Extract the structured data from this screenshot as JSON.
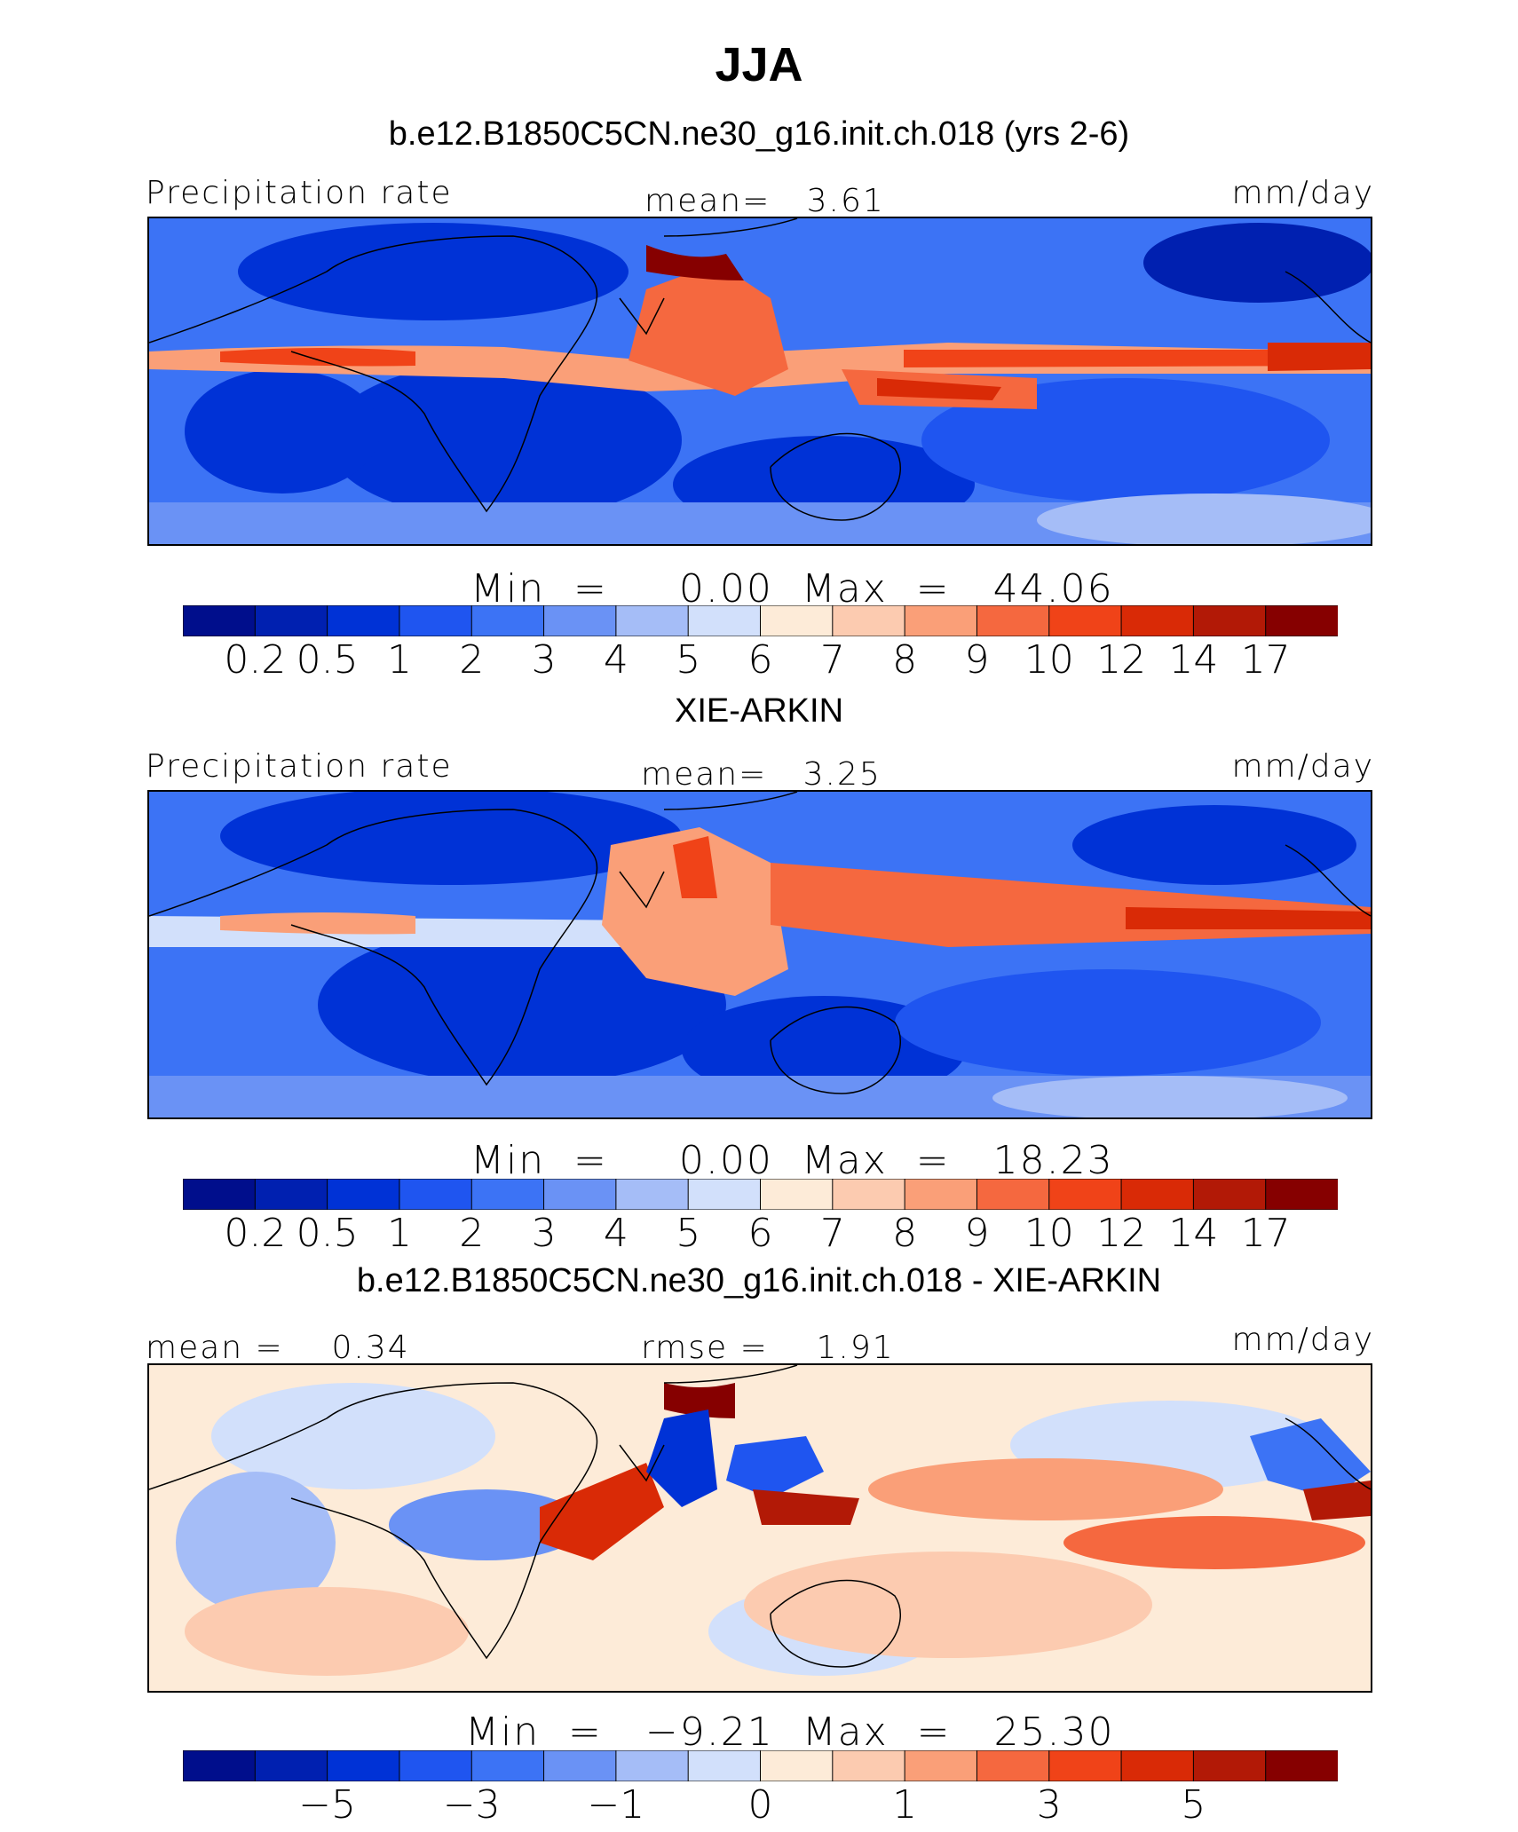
{
  "header": {
    "season": "JJA"
  },
  "colors": {
    "abs_scale": [
      "#000e8c",
      "#0020b0",
      "#0032d6",
      "#1f55f0",
      "#3c73f5",
      "#6a92f5",
      "#a5bdf7",
      "#d2e0fb",
      "#fdebd8",
      "#fccbb0",
      "#fa9f78",
      "#f5683f",
      "#f04318",
      "#d92a06",
      "#b21906",
      "#860000"
    ],
    "diff_scale": [
      "#000e8c",
      "#0020b0",
      "#0032d6",
      "#1f55f0",
      "#3c73f5",
      "#6a92f5",
      "#a5bdf7",
      "#d2e0fb",
      "#fdebd8",
      "#fccbb0",
      "#fa9f78",
      "#f5683f",
      "#f04318",
      "#d92a06",
      "#b21906",
      "#860000"
    ]
  },
  "panels": [
    {
      "title": "b.e12.B1850C5CN.ne30_g16.init.ch.018 (yrs 2-6)",
      "left_label": "Precipitation rate",
      "center_label": "mean=",
      "center_value": "3.61",
      "right_label": "mm/day",
      "min_label": "Min",
      "min_value": "0.00",
      "max_label": "Max",
      "max_value": "44.06",
      "colorbar_labels": [
        "0.2",
        "0.5",
        "1",
        "2",
        "3",
        "4",
        "5",
        "6",
        "7",
        "8",
        "9",
        "10",
        "12",
        "14",
        "17"
      ]
    },
    {
      "title": "XIE-ARKIN",
      "left_label": "Precipitation rate",
      "center_label": "mean=",
      "center_value": "3.25",
      "right_label": "mm/day",
      "min_label": "Min",
      "min_value": "0.00",
      "max_label": "Max",
      "max_value": "18.23",
      "colorbar_labels": [
        "0.2",
        "0.5",
        "1",
        "2",
        "3",
        "4",
        "5",
        "6",
        "7",
        "8",
        "9",
        "10",
        "12",
        "14",
        "17"
      ]
    },
    {
      "title": "b.e12.B1850C5CN.ne30_g16.init.ch.018 - XIE-ARKIN",
      "left_label": "mean =",
      "left_value": "0.34",
      "center_label": "rmse =",
      "center_value": "1.91",
      "right_label": "mm/day",
      "min_label": "Min",
      "min_value": "−9.21",
      "max_label": "Max",
      "max_value": "25.30",
      "colorbar_labels": [
        "−5",
        "−3",
        "−1",
        "0",
        "1",
        "3",
        "5"
      ]
    }
  ],
  "chart_data": [
    {
      "type": "heatmap",
      "title": "b.e12.B1850C5CN.ne30_g16.init.ch.018 (yrs 2-6)",
      "variable": "Precipitation rate",
      "units": "mm/day",
      "mean": 3.61,
      "min": 0.0,
      "max": 44.06,
      "contour_levels": [
        0.2,
        0.5,
        1,
        2,
        3,
        4,
        5,
        6,
        7,
        8,
        9,
        10,
        12,
        14,
        17
      ]
    },
    {
      "type": "heatmap",
      "title": "XIE-ARKIN",
      "variable": "Precipitation rate",
      "units": "mm/day",
      "mean": 3.25,
      "min": 0.0,
      "max": 18.23,
      "contour_levels": [
        0.2,
        0.5,
        1,
        2,
        3,
        4,
        5,
        6,
        7,
        8,
        9,
        10,
        12,
        14,
        17
      ]
    },
    {
      "type": "heatmap",
      "title": "b.e12.B1850C5CN.ne30_g16.init.ch.018 - XIE-ARKIN",
      "units": "mm/day",
      "mean": 0.34,
      "rmse": 1.91,
      "min": -9.21,
      "max": 25.3,
      "labeled_levels": [
        -5,
        -3,
        -1,
        0,
        1,
        3,
        5
      ]
    }
  ]
}
